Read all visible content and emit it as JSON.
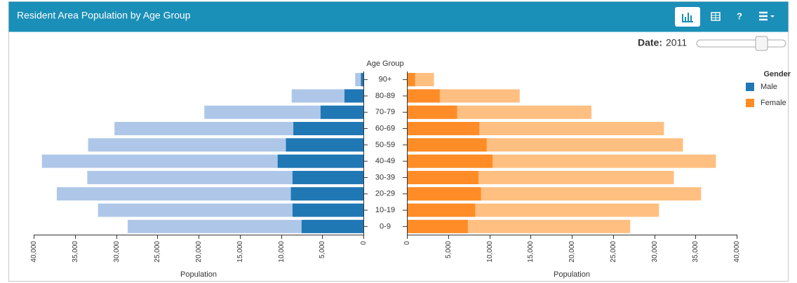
{
  "header": {
    "title": "Resident Area Population by Age Group",
    "help_label": "?"
  },
  "controls": {
    "date_label": "Date:",
    "date_value": "2011"
  },
  "chart_data": {
    "type": "pyramid",
    "category_axis_label": "Age Group",
    "categories": [
      "90+",
      "80-89",
      "70-79",
      "60-69",
      "50-59",
      "40-49",
      "30-39",
      "20-29",
      "10-19",
      "0-9"
    ],
    "legend_title": "Gender",
    "series": [
      {
        "name": "Male",
        "side": "left",
        "color": "#1f77b4",
        "light_color": "#aec7e8",
        "values": [
          300,
          2300,
          5200,
          8500,
          9400,
          10400,
          8600,
          8800,
          8600,
          7500
        ],
        "light_values": [
          1000,
          8700,
          19300,
          30200,
          33400,
          39000,
          33500,
          37200,
          32200,
          28600
        ]
      },
      {
        "name": "Female",
        "side": "right",
        "color": "#ff8c26",
        "light_color": "#ffbf80",
        "values": [
          900,
          3900,
          6000,
          8700,
          9600,
          10300,
          8600,
          8900,
          8200,
          7300
        ],
        "light_values": [
          3200,
          13600,
          22300,
          31100,
          33400,
          37400,
          32300,
          35600,
          30500,
          27000
        ]
      }
    ],
    "xlabel": "Population",
    "xlim": [
      0,
      40000
    ],
    "xticks": [
      0,
      {
        "value": 5000,
        "label": "5,000"
      },
      {
        "value": 10000,
        "label": "10,000"
      },
      {
        "value": 15000,
        "label": "15,000"
      },
      {
        "value": 20000,
        "label": "20,000"
      },
      {
        "value": 25000,
        "label": "25,000"
      },
      {
        "value": 30000,
        "label": "30,000"
      },
      {
        "value": 35000,
        "label": "35,000"
      },
      {
        "value": 40000,
        "label": "40,000"
      }
    ]
  }
}
